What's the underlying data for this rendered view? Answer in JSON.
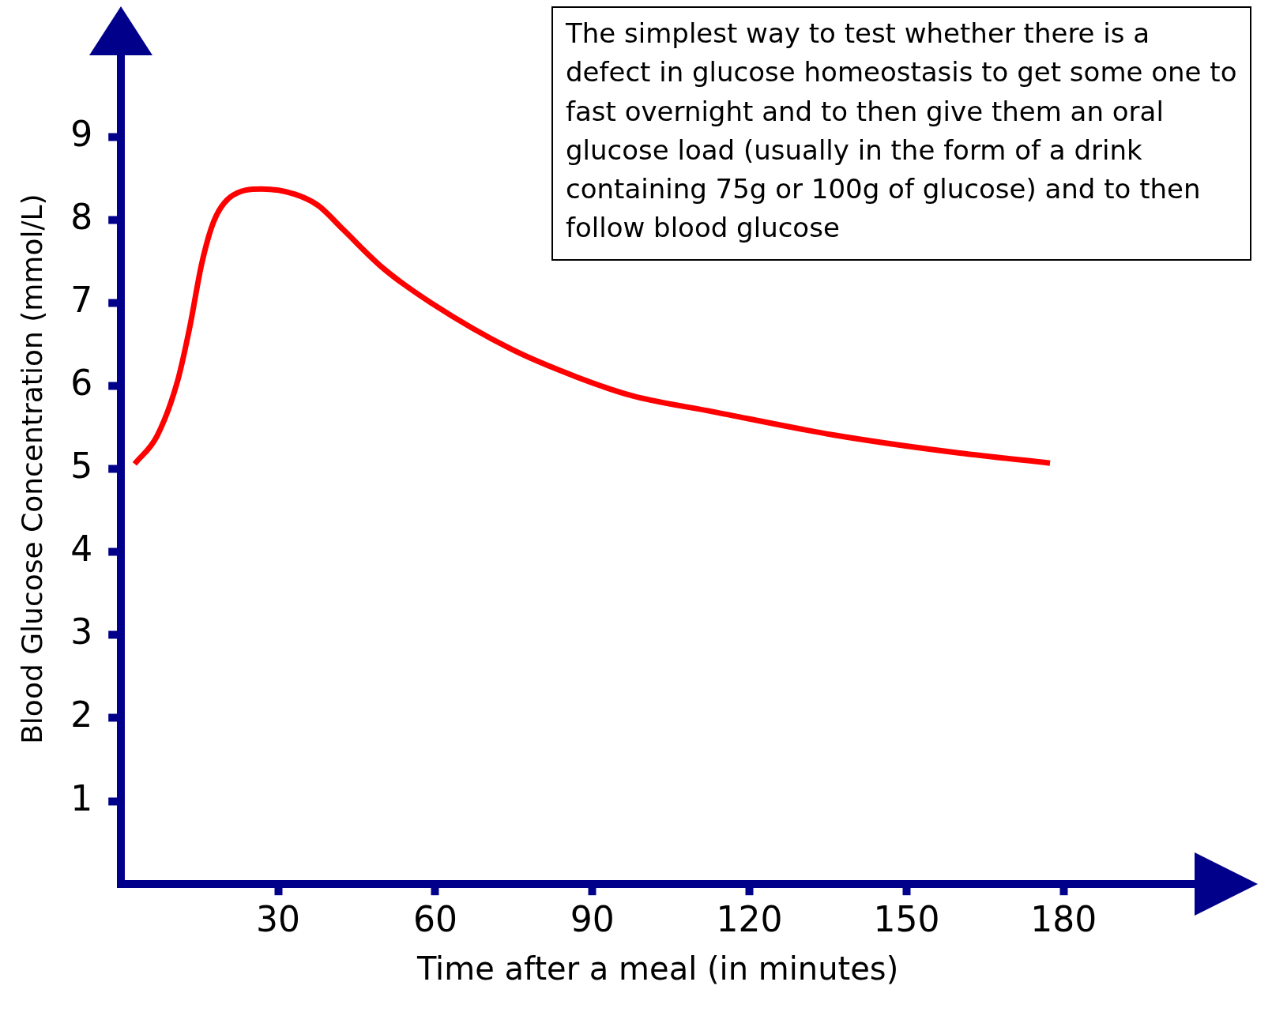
{
  "chart_data": {
    "type": "line",
    "xlabel": "Time after a meal (in minutes)",
    "ylabel": "Blood Glucose Concentration (mmol/L)",
    "annotations": [
      "The simplest way to test whether there is a defect in glucose homeostasis to get some one to fast overnight and to then give them an oral glucose load (usually in the form of a drink containing 75g or 100g of glucose) and to then follow blood glucose"
    ],
    "x": [
      2.6,
      6.9,
      10.8,
      13.1,
      15.4,
      17.7,
      20.8,
      26.9,
      33.1,
      37.7,
      42.3,
      50,
      59.2,
      74.6,
      86.9,
      97.7,
      113,
      136,
      159,
      177.4
    ],
    "series": [
      {
        "color": "#ff0000",
        "values": [
          5.06,
          5.4,
          6.06,
          6.7,
          7.47,
          7.98,
          8.27,
          8.37,
          8.31,
          8.17,
          7.89,
          7.42,
          7.0,
          6.44,
          6.11,
          5.88,
          5.69,
          5.41,
          5.2,
          5.07
        ]
      }
    ],
    "xlim": [
      0,
      205
    ],
    "xticks": [
      30,
      60,
      90,
      120,
      150,
      180
    ],
    "ylim": [
      0,
      10
    ],
    "yticks": [
      1,
      2,
      3,
      4,
      5,
      6,
      7,
      8,
      9
    ],
    "grid": false,
    "legend": false,
    "marker": "none",
    "line_style": "solid"
  }
}
